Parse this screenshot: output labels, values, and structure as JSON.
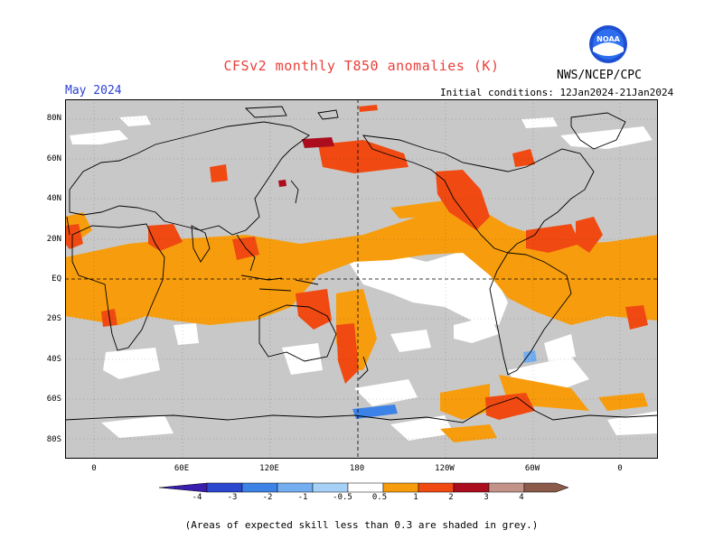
{
  "title": "CFSv2 monthly T850 anomalies (K)",
  "month": "May 2024",
  "initial_conditions": "Initial conditions: 12Jan2024-21Jan2024",
  "organization": "NWS/NCEP/CPC",
  "logo_text": "NOAA",
  "footnote": "(Areas of expected skill less than 0.3 are shaded in grey.)",
  "lat_labels": [
    "80N",
    "60N",
    "40N",
    "20N",
    "EQ",
    "20S",
    "40S",
    "60S",
    "80S"
  ],
  "lon_labels": [
    "0",
    "60E",
    "120E",
    "180",
    "120W",
    "60W",
    "0"
  ],
  "colorbar": {
    "labels": [
      "-4",
      "-3",
      "-2",
      "-1",
      "-0.5",
      "0.5",
      "1",
      "2",
      "3",
      "4"
    ],
    "colors": [
      "#3a1fae",
      "#2b48cf",
      "#3d82e6",
      "#72aef0",
      "#a7d0f7",
      "#ffffff",
      "#f79d0d",
      "#f04a12",
      "#ab0d1f",
      "#c3938a",
      "#8b5a4a"
    ]
  },
  "colors": {
    "skill_grey": "#c8c8c8",
    "warm_light": "#f79d0d",
    "warm": "#f04a12",
    "warm_strong": "#ab0d1f",
    "cool": "#72aef0",
    "title": "#e8403a",
    "month": "#2a3fd6"
  }
}
